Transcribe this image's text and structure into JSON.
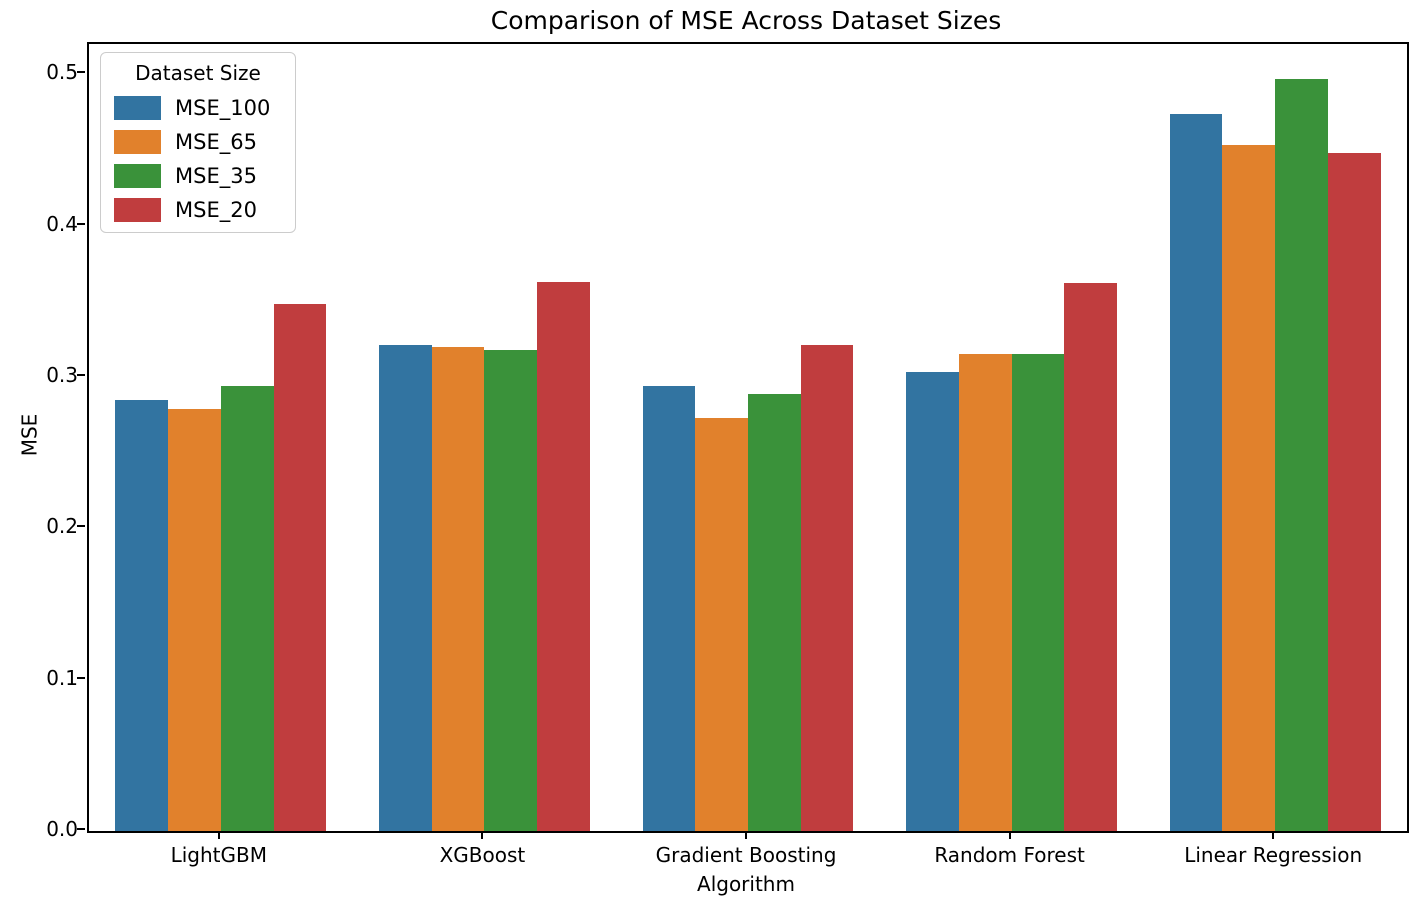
{
  "chart_data": {
    "type": "bar",
    "title": "Comparison of MSE Across Dataset Sizes",
    "xlabel": "Algorithm",
    "ylabel": "MSE",
    "categories": [
      "LightGBM",
      "XGBoost",
      "Gradient Boosting",
      "Random Forest",
      "Linear Regression"
    ],
    "series": [
      {
        "name": "MSE_100",
        "color": "#3274a1",
        "values": [
          0.285,
          0.321,
          0.294,
          0.303,
          0.474
        ]
      },
      {
        "name": "MSE_65",
        "color": "#e1812c",
        "values": [
          0.279,
          0.32,
          0.273,
          0.315,
          0.453
        ]
      },
      {
        "name": "MSE_35",
        "color": "#3a923a",
        "values": [
          0.294,
          0.318,
          0.289,
          0.315,
          0.497
        ]
      },
      {
        "name": "MSE_20",
        "color": "#c03d3e",
        "values": [
          0.348,
          0.363,
          0.321,
          0.362,
          0.448
        ]
      }
    ],
    "ylim": [
      0,
      0.52
    ],
    "yticks": [
      0.0,
      0.1,
      0.2,
      0.3,
      0.4,
      0.5
    ],
    "ytick_labels": [
      "0.0",
      "0.1",
      "0.2",
      "0.3",
      "0.4",
      "0.5"
    ],
    "legend_title": "Dataset Size",
    "legend_position": "upper left",
    "grid": false,
    "bar_group_fraction": 0.8
  }
}
